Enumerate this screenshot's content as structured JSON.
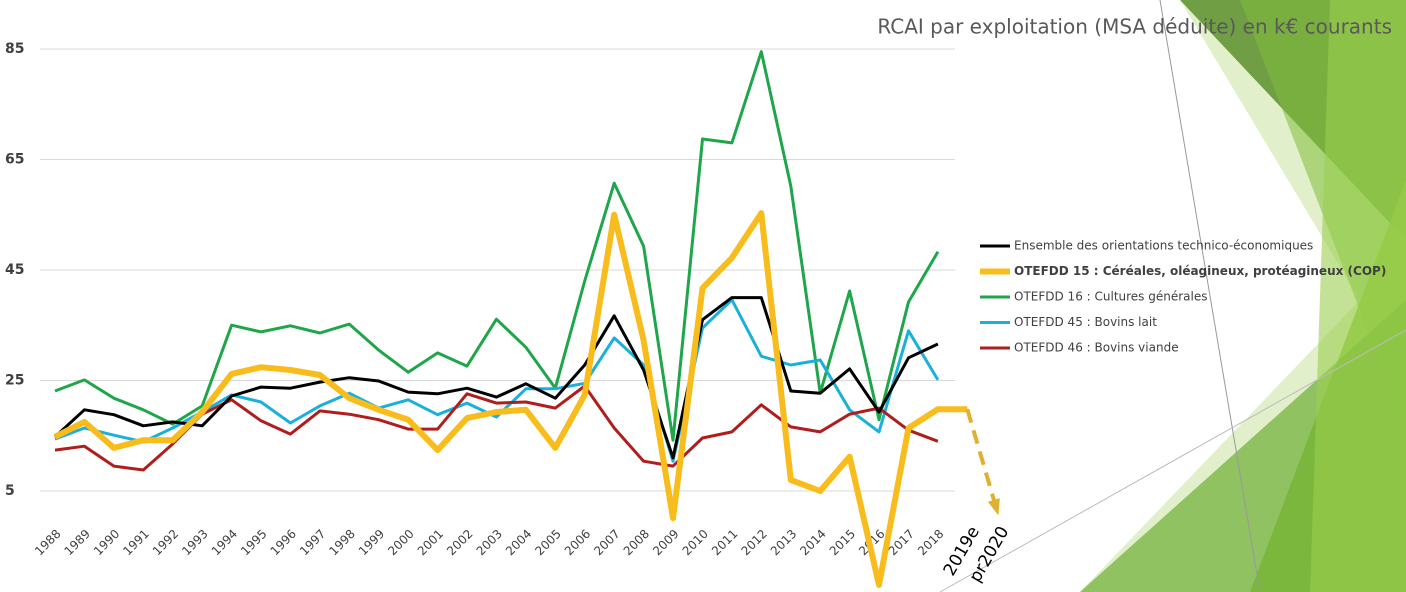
{
  "chart_data": {
    "type": "line",
    "title": "RCAI par exploitation (MSA déduite) en k€ courants",
    "categories": [
      "1988",
      "1989",
      "1990",
      "1991",
      "1992",
      "1993",
      "1994",
      "1995",
      "1996",
      "1997",
      "1998",
      "1999",
      "2000",
      "2001",
      "2002",
      "2003",
      "2004",
      "2005",
      "2006",
      "2007",
      "2008",
      "2009",
      "2010",
      "2011",
      "2012",
      "2013",
      "2014",
      "2015",
      "2016",
      "2017",
      "2018",
      "2019e",
      "pr2020"
    ],
    "ylim": [
      -13,
      88
    ],
    "yticks": [
      5,
      25,
      45,
      65,
      85
    ],
    "grid": true,
    "series": [
      {
        "name": "Ensemble des orientations technico-économiques",
        "color": "#000000",
        "width": 3,
        "values": [
          14.8,
          19.7,
          18.8,
          16.8,
          17.5,
          16.8,
          22.2,
          23.8,
          23.6,
          24.7,
          25.5,
          24.9,
          22.9,
          22.6,
          23.6,
          22,
          24.4,
          21.8,
          27.8,
          36.7,
          26.9,
          11,
          36,
          40,
          40,
          23.1,
          22.7,
          27.1,
          19.3,
          29.1,
          31.6,
          null,
          null
        ]
      },
      {
        "name": "OTEFDD 15 : Céréales, oléagineux, protéagineux (COP)",
        "color": "#f8bc1c",
        "width": 6,
        "values": [
          14.8,
          17.5,
          12.8,
          14.2,
          14.2,
          19.3,
          26.2,
          27.4,
          26.9,
          26,
          21.8,
          19.7,
          17.9,
          12.4,
          18.2,
          19.3,
          19.7,
          12.8,
          22.4,
          55,
          32.3,
          0.1,
          41.7,
          47.2,
          55.3,
          7,
          5,
          11.2,
          -12,
          16.4,
          19.8,
          19.8,
          null
        ]
      },
      {
        "name": "OTEFDD 16 : Cultures générales",
        "color": "#1fa64a",
        "width": 3,
        "values": [
          23.1,
          25.1,
          21.8,
          19.7,
          17.1,
          20.4,
          35,
          33.8,
          34.9,
          33.6,
          35.2,
          30.5,
          26.5,
          30,
          27.6,
          36.1,
          31,
          23.6,
          43,
          60.7,
          49.3,
          14.2,
          68.7,
          68,
          84.5,
          60.2,
          22.7,
          41.2,
          17.9,
          39.2,
          48.3,
          null,
          null
        ]
      },
      {
        "name": "OTEFDD 45 : Bovins lait",
        "color": "#1ab0dc",
        "width": 3,
        "values": [
          14.4,
          16.4,
          15.1,
          13.9,
          16.4,
          19.3,
          22.4,
          21.1,
          17.3,
          20.4,
          22.7,
          20,
          21.5,
          18.8,
          20.9,
          18.4,
          23.5,
          23.5,
          24.5,
          32.7,
          27.8,
          10.4,
          34.5,
          39.6,
          29.4,
          27.8,
          28.7,
          19.7,
          15.7,
          34,
          25.1,
          null,
          null
        ]
      },
      {
        "name": "OTEFDD 46 : Bovins viande",
        "color": "#b01d1d",
        "width": 3,
        "values": [
          12.4,
          13.1,
          9.5,
          8.8,
          13.5,
          18.9,
          21.5,
          17.7,
          15.3,
          19.5,
          18.9,
          17.9,
          16.2,
          16.2,
          22.6,
          20.9,
          21.1,
          20,
          24,
          16.4,
          10.4,
          9.5,
          14.6,
          15.7,
          20.6,
          16.6,
          15.7,
          18.9,
          20,
          16,
          14,
          null,
          null
        ]
      }
    ],
    "forecast": {
      "color": "#e0b030",
      "values": [
        null,
        null,
        null,
        null,
        null,
        null,
        null,
        null,
        null,
        null,
        null,
        null,
        null,
        null,
        null,
        null,
        null,
        null,
        null,
        null,
        null,
        null,
        null,
        null,
        null,
        null,
        null,
        null,
        null,
        null,
        null,
        19.8,
        1.6
      ]
    }
  }
}
